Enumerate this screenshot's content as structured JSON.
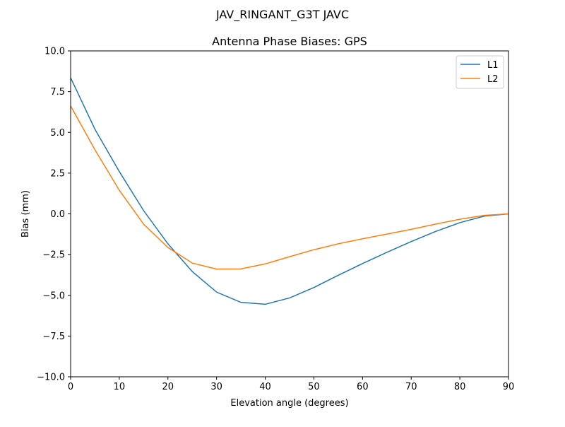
{
  "chart_data": {
    "type": "line",
    "suptitle": "JAV_RINGANT_G3T JAVC",
    "title": "Antenna Phase Biases: GPS",
    "xlabel": "Elevation angle (degrees)",
    "ylabel": "Bias (mm)",
    "xlim": [
      0,
      90
    ],
    "ylim": [
      -10,
      10
    ],
    "xticks": [
      0,
      10,
      20,
      30,
      40,
      50,
      60,
      70,
      80,
      90
    ],
    "yticks": [
      -10.0,
      -7.5,
      -5.0,
      -2.5,
      0.0,
      2.5,
      5.0,
      7.5,
      10.0
    ],
    "xtick_labels": [
      "0",
      "10",
      "20",
      "30",
      "40",
      "50",
      "60",
      "70",
      "80",
      "90"
    ],
    "ytick_labels": [
      "−10.0",
      "−7.5",
      "−5.0",
      "−2.5",
      "0.0",
      "2.5",
      "5.0",
      "7.5",
      "10.0"
    ],
    "grid": false,
    "legend_position": "top-right",
    "x": [
      0,
      5,
      10,
      15,
      20,
      25,
      30,
      35,
      40,
      45,
      50,
      55,
      60,
      65,
      70,
      75,
      80,
      85,
      90
    ],
    "series": [
      {
        "name": "L1",
        "color": "#1f77b4",
        "values": [
          8.35,
          5.19,
          2.6,
          0.2,
          -1.84,
          -3.54,
          -4.8,
          -5.43,
          -5.55,
          -5.16,
          -4.52,
          -3.77,
          -3.05,
          -2.36,
          -1.7,
          -1.08,
          -0.54,
          -0.14,
          0.0
        ]
      },
      {
        "name": "L2",
        "color": "#ff7f0e",
        "values": [
          6.62,
          3.93,
          1.45,
          -0.63,
          -2.06,
          -3.02,
          -3.39,
          -3.38,
          -3.07,
          -2.63,
          -2.2,
          -1.84,
          -1.53,
          -1.24,
          -0.95,
          -0.63,
          -0.33,
          -0.09,
          0.0
        ]
      }
    ]
  }
}
